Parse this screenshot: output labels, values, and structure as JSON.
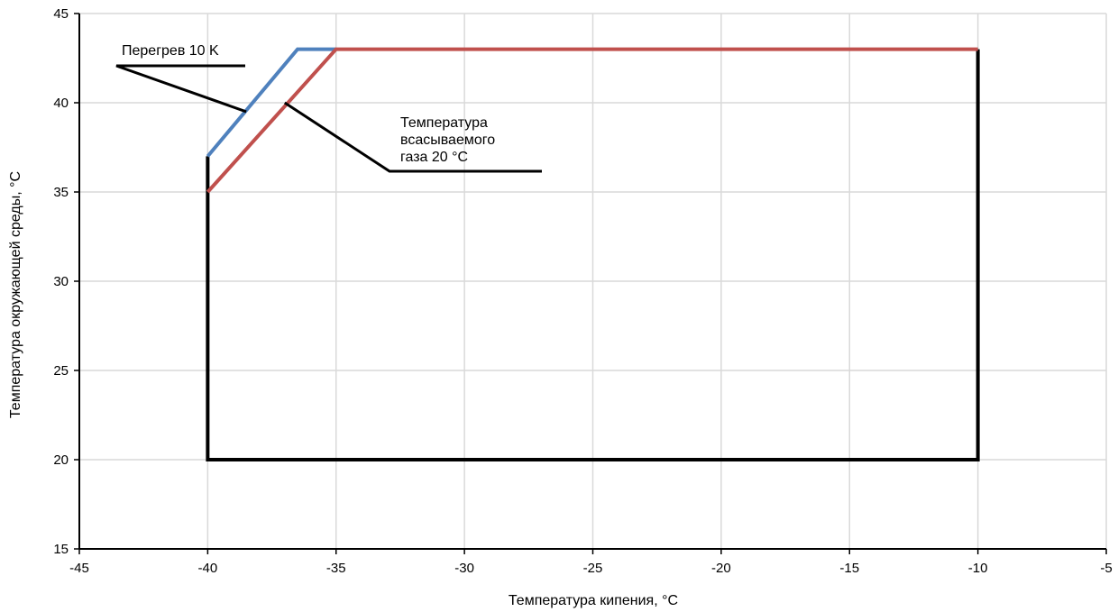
{
  "chart_data": {
    "type": "line",
    "title": "",
    "xlabel": "Температура кипения, °C",
    "ylabel": "Температура окружающей среды, °C",
    "xlim": [
      -45,
      -5
    ],
    "ylim": [
      15,
      45
    ],
    "xticks": [
      "-45",
      "-40",
      "-35",
      "-30",
      "-25",
      "-20",
      "-15",
      "-10",
      "-5"
    ],
    "yticks": [
      "15",
      "20",
      "25",
      "30",
      "35",
      "40",
      "45"
    ],
    "grid": true,
    "legend": "none",
    "series": [
      {
        "color": "#000000",
        "points": [
          [
            -40,
            37
          ],
          [
            -40,
            20
          ],
          [
            -10,
            20
          ],
          [
            -10,
            43
          ]
        ]
      },
      {
        "color": "#4f81bd",
        "points": [
          [
            -40,
            37
          ],
          [
            -36.5,
            43
          ],
          [
            -35,
            43
          ]
        ]
      },
      {
        "color": "#c0504d",
        "points": [
          [
            -40,
            35
          ],
          [
            -35,
            43
          ],
          [
            -10,
            43
          ]
        ]
      }
    ],
    "annotations": [
      {
        "lines": [
          "Перегрев 10 K"
        ],
        "points_to": [
          -38.5,
          39.5
        ]
      },
      {
        "lines": [
          "Температура",
          "всасываемого",
          "газа 20 °C"
        ],
        "points_to": [
          -37,
          40
        ]
      }
    ]
  }
}
